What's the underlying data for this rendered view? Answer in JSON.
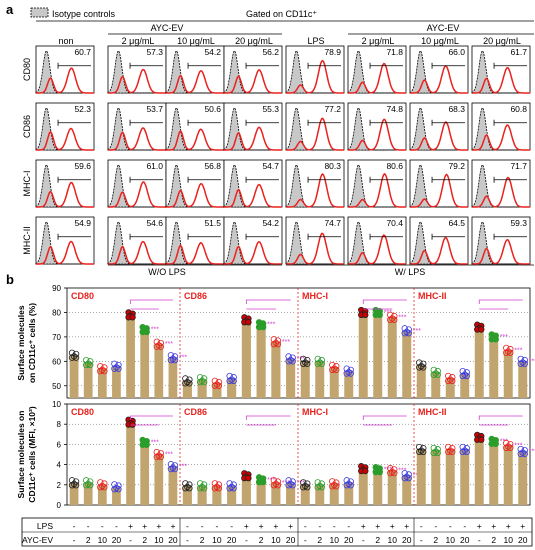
{
  "panel_a": {
    "letter": "a",
    "legend_label": "Isotype controls",
    "gate_label": "Gated on CD11c⁺",
    "group_label": "AYC-EV",
    "column_labels": [
      "non",
      "2 μg/mL",
      "10 μg/mL",
      "20 μg/mL",
      "LPS",
      "2 μg/mL",
      "10 μg/mL",
      "20 μg/mL"
    ],
    "row_labels": [
      "CD80",
      "CD86",
      "MHC-I",
      "MHC-II"
    ],
    "values": [
      [
        "60.7",
        "57.3",
        "54.2",
        "56.2",
        "78.9",
        "71.8",
        "66.0",
        "61.7"
      ],
      [
        "52.3",
        "53.7",
        "50.6",
        "55.3",
        "77.2",
        "74.8",
        "68.3",
        "60.8"
      ],
      [
        "59.6",
        "61.0",
        "56.8",
        "54.7",
        "80.3",
        "80.6",
        "79.2",
        "71.7"
      ],
      [
        "54.9",
        "54.6",
        "51.5",
        "54.2",
        "74.7",
        "70.4",
        "64.5",
        "59.3"
      ]
    ],
    "footer_wo": "W/O LPS",
    "footer_w": "W/ LPS",
    "colors": {
      "histogram": "#e8231f",
      "isotype_fill": "#c8c8c8"
    }
  },
  "panel_b": {
    "letter": "b",
    "colors": {
      "bar": "#c2a56e",
      "marker": "#e8231f",
      "sig": "#d23fcf",
      "title": "#e8231f"
    },
    "rows": [
      {
        "ylabel_1": "Surface molecules",
        "ylabel_2": "on CD11c⁺ cells (%)",
        "yticks": [
          "50",
          "60",
          "70",
          "80",
          "90"
        ],
        "ylim": [
          45,
          90
        ],
        "marker": "CD80",
        "panels": [
          {
            "title": "CD80",
            "values": [
              62.5,
              59.5,
              57.0,
              58.0,
              79.0,
              73.0,
              67.0,
              61.5
            ]
          },
          {
            "title": "CD86",
            "values": [
              52.0,
              52.5,
              51.0,
              53.0,
              77.0,
              75.0,
              68.0,
              61.0
            ]
          },
          {
            "title": "MHC-I",
            "values": [
              60.0,
              60.0,
              57.5,
              56.0,
              80.0,
              80.0,
              78.0,
              72.5
            ]
          },
          {
            "title": "MHC-II",
            "values": [
              58.5,
              55.5,
              53.0,
              55.0,
              74.0,
              70.0,
              64.5,
              60.0
            ]
          }
        ]
      },
      {
        "ylabel_1": "Surface molecules on",
        "ylabel_2": "CD11c⁺ cells (MFI, ×10³)",
        "yticks": [
          "0",
          "2",
          "4",
          "6",
          "8",
          "10"
        ],
        "ylim": [
          0,
          10
        ],
        "panels": [
          {
            "title": "CD80",
            "values": [
              2.2,
              2.2,
              2.0,
              1.8,
              8.2,
              6.2,
              5.0,
              3.8
            ]
          },
          {
            "title": "CD86",
            "values": [
              1.9,
              1.9,
              1.9,
              1.9,
              2.9,
              2.5,
              2.2,
              2.2
            ]
          },
          {
            "title": "MHC-I",
            "values": [
              2.0,
              2.0,
              2.1,
              2.2,
              3.6,
              3.5,
              3.4,
              2.9
            ]
          },
          {
            "title": "MHC-II",
            "values": [
              5.5,
              5.4,
              5.5,
              5.5,
              6.7,
              6.3,
              5.9,
              5.3
            ]
          }
        ]
      }
    ],
    "condition_table": {
      "row_labels": [
        "LPS",
        "AYC-EV"
      ],
      "lps": [
        "-",
        "-",
        "-",
        "-",
        "+",
        "+",
        "+",
        "+"
      ],
      "ayc": [
        "-",
        "2",
        "10",
        "20",
        "-",
        "2",
        "10",
        "20"
      ]
    }
  }
}
